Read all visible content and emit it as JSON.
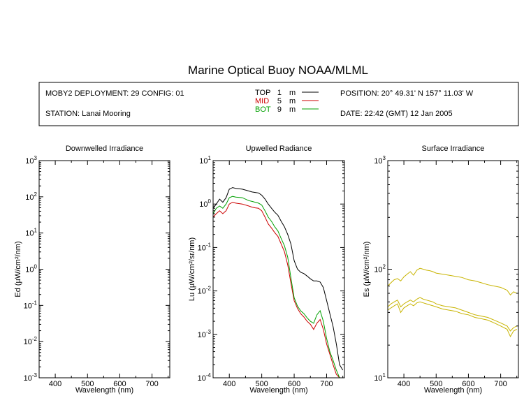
{
  "title": "Marine Optical Buoy NOAA/MLML",
  "info": {
    "deployment": "MOBY2 DEPLOYMENT: 29 CONFIG: 01",
    "station": "STATION: Lanai Mooring",
    "position": "POSITION: 20° 49.31' N   157° 11.03' W",
    "date": "DATE: 22:42 (GMT) 12 Jan 2005"
  },
  "legend": [
    {
      "name": "TOP",
      "depth": "1",
      "unit": "m",
      "color": "#000000"
    },
    {
      "name": "MID",
      "depth": "5",
      "unit": "m",
      "color": "#cc0000"
    },
    {
      "name": "BOT",
      "depth": "9",
      "unit": "m",
      "color": "#00a000"
    }
  ],
  "chart_data": [
    {
      "type": "line",
      "title": "Downwelled Irradiance",
      "xlabel": "Wavelength (nm)",
      "ylabel": "Ed  (µW/cm²/nm)",
      "xlim": [
        350,
        755
      ],
      "ylim": [
        0.001,
        1000
      ],
      "yscale": "log",
      "xticks": [
        "400",
        "500",
        "600",
        "700"
      ],
      "yticks": [
        {
          "base": "10",
          "exp": "3"
        },
        {
          "base": "10",
          "exp": "2"
        },
        {
          "base": "10",
          "exp": "1"
        },
        {
          "base": "10",
          "exp": "0"
        },
        {
          "base": "10",
          "exp": "-1"
        },
        {
          "base": "10",
          "exp": "-2"
        },
        {
          "base": "10",
          "exp": "-3"
        }
      ],
      "series": []
    },
    {
      "type": "line",
      "title": "Upwelled Radiance",
      "xlabel": "Wavelength (nm)",
      "ylabel": "Lu  (µW/cm²/sr/nm)",
      "xlim": [
        350,
        755
      ],
      "ylim": [
        0.0001,
        10
      ],
      "yscale": "log",
      "xticks": [
        "400",
        "500",
        "600",
        "700"
      ],
      "yticks": [
        {
          "base": "10",
          "exp": "1"
        },
        {
          "base": "10",
          "exp": "0"
        },
        {
          "base": "10",
          "exp": "-1"
        },
        {
          "base": "10",
          "exp": "-2"
        },
        {
          "base": "10",
          "exp": "-3"
        },
        {
          "base": "10",
          "exp": "-4"
        }
      ],
      "series": [
        {
          "name": "TOP",
          "color": "#000000",
          "x": [
            350,
            360,
            370,
            380,
            390,
            400,
            410,
            420,
            440,
            460,
            470,
            480,
            490,
            500,
            510,
            520,
            530,
            540,
            550,
            560,
            570,
            580,
            590,
            600,
            610,
            620,
            630,
            640,
            650,
            660,
            670,
            680,
            690,
            700,
            710,
            720,
            730,
            740,
            750
          ],
          "y": [
            0.8,
            1.0,
            1.3,
            1.1,
            1.4,
            2.2,
            2.4,
            2.3,
            2.2,
            2.0,
            1.9,
            1.85,
            1.8,
            1.6,
            1.3,
            1.0,
            0.8,
            0.65,
            0.55,
            0.4,
            0.3,
            0.2,
            0.12,
            0.05,
            0.032,
            0.027,
            0.025,
            0.022,
            0.019,
            0.017,
            0.017,
            0.016,
            0.012,
            0.006,
            0.003,
            0.0015,
            0.0006,
            0.0002,
            0.00015
          ]
        },
        {
          "name": "MID",
          "color": "#cc0000",
          "x": [
            350,
            360,
            370,
            380,
            390,
            400,
            410,
            420,
            440,
            460,
            470,
            480,
            490,
            500,
            510,
            520,
            530,
            540,
            550,
            560,
            570,
            580,
            590,
            600,
            610,
            620,
            630,
            640,
            650,
            660,
            670,
            680,
            690,
            700,
            710,
            720,
            730,
            740
          ],
          "y": [
            0.5,
            0.6,
            0.7,
            0.6,
            0.7,
            1.0,
            1.1,
            1.05,
            1.0,
            0.9,
            0.85,
            0.82,
            0.8,
            0.7,
            0.5,
            0.35,
            0.28,
            0.22,
            0.18,
            0.12,
            0.08,
            0.04,
            0.015,
            0.006,
            0.004,
            0.003,
            0.0025,
            0.002,
            0.0017,
            0.0013,
            0.0018,
            0.0022,
            0.0013,
            0.0006,
            0.00035,
            0.0002,
            0.00012,
            0.0001
          ]
        },
        {
          "name": "BOT",
          "color": "#00a000",
          "x": [
            350,
            360,
            370,
            380,
            390,
            400,
            410,
            420,
            440,
            460,
            470,
            480,
            490,
            500,
            510,
            520,
            530,
            540,
            550,
            560,
            570,
            580,
            590,
            600,
            610,
            620,
            630,
            640,
            650,
            660,
            670,
            680,
            690,
            700,
            710,
            720,
            730,
            740
          ],
          "y": [
            0.6,
            0.8,
            0.9,
            0.8,
            1.0,
            1.4,
            1.5,
            1.45,
            1.4,
            1.2,
            1.15,
            1.1,
            1.05,
            0.95,
            0.7,
            0.5,
            0.4,
            0.3,
            0.24,
            0.16,
            0.11,
            0.06,
            0.02,
            0.007,
            0.0045,
            0.0035,
            0.003,
            0.0024,
            0.002,
            0.0018,
            0.0028,
            0.0035,
            0.002,
            0.0008,
            0.0004,
            0.00025,
            0.00015,
            0.0001
          ]
        }
      ]
    },
    {
      "type": "line",
      "title": "Surface Irradiance",
      "xlabel": "Wavelength (nm)",
      "ylabel": "Es  (µW/cm²/nm)",
      "xlim": [
        350,
        755
      ],
      "ylim": [
        10,
        1000
      ],
      "yscale": "log",
      "xticks": [
        "400",
        "500",
        "600",
        "700"
      ],
      "yticks": [
        {
          "base": "10",
          "exp": "3"
        },
        {
          "base": "10",
          "exp": "2"
        },
        {
          "base": "10",
          "exp": "1"
        }
      ],
      "series": [
        {
          "color": "#c8b400",
          "x": [
            350,
            360,
            370,
            380,
            390,
            400,
            410,
            420,
            430,
            440,
            450,
            460,
            470,
            480,
            490,
            500,
            520,
            540,
            560,
            580,
            600,
            620,
            640,
            660,
            680,
            700,
            720,
            730,
            740,
            750
          ],
          "y": [
            70,
            75,
            80,
            82,
            78,
            85,
            90,
            95,
            88,
            98,
            102,
            100,
            98,
            97,
            95,
            92,
            90,
            88,
            86,
            84,
            80,
            78,
            75,
            72,
            70,
            68,
            64,
            58,
            62,
            60
          ]
        },
        {
          "color": "#c8b400",
          "x": [
            350,
            360,
            370,
            380,
            390,
            400,
            410,
            420,
            430,
            440,
            450,
            460,
            470,
            480,
            490,
            500,
            520,
            540,
            560,
            580,
            600,
            620,
            640,
            660,
            680,
            700,
            720,
            730,
            740,
            750
          ],
          "y": [
            45,
            48,
            50,
            52,
            45,
            48,
            50,
            52,
            50,
            53,
            55,
            53,
            52,
            51,
            50,
            48,
            46,
            45,
            44,
            42,
            40,
            38,
            37,
            36,
            34,
            32,
            30,
            27,
            29,
            30
          ]
        },
        {
          "color": "#c8b400",
          "x": [
            350,
            360,
            370,
            380,
            390,
            400,
            410,
            420,
            430,
            440,
            450,
            460,
            470,
            480,
            490,
            500,
            520,
            540,
            560,
            580,
            600,
            620,
            640,
            660,
            680,
            700,
            720,
            730,
            740,
            750
          ],
          "y": [
            42,
            44,
            46,
            48,
            40,
            44,
            46,
            48,
            46,
            49,
            50,
            49,
            48,
            47,
            46,
            45,
            43,
            42,
            41,
            39,
            38,
            36,
            35,
            34,
            32,
            30,
            28,
            24,
            27,
            28
          ]
        }
      ]
    }
  ]
}
